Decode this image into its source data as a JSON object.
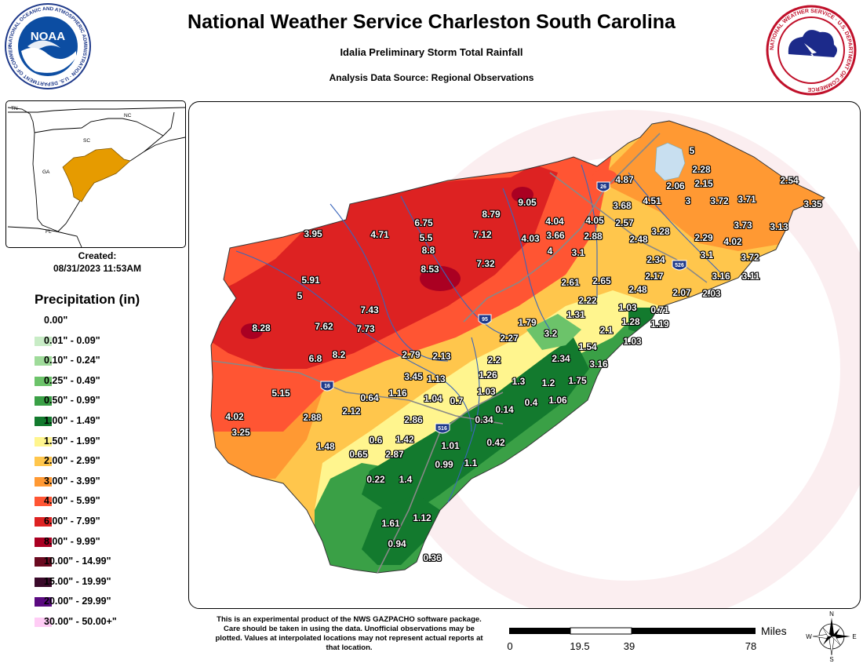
{
  "header": {
    "title": "National Weather Service Charleston South Carolina",
    "subtitle": "Idalia Preliminary Storm Total Rainfall",
    "source": "Analysis Data Source: Regional Observations"
  },
  "logos": {
    "noaa_text": "NOAA",
    "noaa_ring": "NATIONAL OCEANIC AND ATMOSPHERIC ADMINISTRATION · U.S. DEPARTMENT OF COMMERCE",
    "nws_ring": "NATIONAL WEATHER SERVICE · U.S. DEPARTMENT OF COMMERCE"
  },
  "inset": {
    "labels": [
      "TN",
      "NC",
      "SC",
      "GA",
      "FL"
    ],
    "highlight_color": "#e69b00"
  },
  "created": {
    "label": "Created:",
    "date": "08/31/2023 11:53AM"
  },
  "legend": {
    "title": "Precipitation (in)",
    "items": [
      {
        "label": "0.00\"",
        "color": "#ffffff"
      },
      {
        "label": "0.01\" - 0.09\"",
        "color": "#c8ecc6"
      },
      {
        "label": "0.10\" - 0.24\"",
        "color": "#9fdb9a"
      },
      {
        "label": "0.25\" - 0.49\"",
        "color": "#6cc36a"
      },
      {
        "label": "0.50\" - 0.99\"",
        "color": "#3aa046"
      },
      {
        "label": "1.00\" - 1.49\"",
        "color": "#137a2e"
      },
      {
        "label": "1.50\" - 1.99\"",
        "color": "#fff58e"
      },
      {
        "label": "2.00\" - 2.99\"",
        "color": "#ffc64c"
      },
      {
        "label": "3.00\" - 3.99\"",
        "color": "#ff9933"
      },
      {
        "label": "4.00\" - 5.99\"",
        "color": "#ff5533"
      },
      {
        "label": "6.00\" - 7.99\"",
        "color": "#dd2222"
      },
      {
        "label": "8.00\" - 9.99\"",
        "color": "#aa0022"
      },
      {
        "label": "10.00\" - 14.99\"",
        "color": "#6a0a20"
      },
      {
        "label": "15.00\" - 19.99\"",
        "color": "#3a0a2a"
      },
      {
        "label": "20.00\" - 29.99\"",
        "color": "#5a0a80"
      },
      {
        "label": "30.00\" - 50.00+\"",
        "color": "#ffccf5"
      }
    ]
  },
  "map": {
    "highways": [
      "26",
      "95",
      "526",
      "16",
      "516"
    ],
    "observations": [
      "5",
      "2.28",
      "4.87",
      "2.06",
      "2.15",
      "2.54",
      "3.68",
      "4.51",
      "3",
      "3.72",
      "3.71",
      "3.35",
      "9.05",
      "8.79",
      "6.75",
      "4.04",
      "4.05",
      "2.57",
      "3.73",
      "3.13",
      "3.95",
      "4.71",
      "5.5",
      "7.12",
      "4.03",
      "3.66",
      "2.88",
      "3.28",
      "2.29",
      "4.02",
      "8.8",
      "2.48",
      "4",
      "3.1",
      "3.1",
      "3.72",
      "7.32",
      "8.53",
      "2.34",
      "5.91",
      "2.17",
      "3.16",
      "3.11",
      "5",
      "2.61",
      "2.65",
      "2.07",
      "2.03",
      "2.48",
      "7.43",
      "2.22",
      "1.03",
      "0.71",
      "8.28",
      "7.62",
      "7.73",
      "1.31",
      "1.28",
      "1.19",
      "1.79",
      "2.1",
      "2.27",
      "3.2",
      "1.03",
      "1.54",
      "6.8",
      "8.2",
      "2.79",
      "2.13",
      "2.2",
      "2.34",
      "3.16",
      "3.45",
      "1.13",
      "1.26",
      "1.3",
      "1.2",
      "1.75",
      "5.15",
      "1.16",
      "0.64",
      "1.03",
      "1.04",
      "0.7",
      "0.4",
      "1.06",
      "0.14",
      "4.02",
      "2.88",
      "2.12",
      "2.86",
      "0.34",
      "3.25",
      "0.6",
      "1.42",
      "0.42",
      "1.48",
      "0.65",
      "2.87",
      "1.01",
      "0.99",
      "1.1",
      "0.22",
      "1.4",
      "1.61",
      "1.12",
      "0.94",
      "0.36"
    ]
  },
  "footer": {
    "disclaimer": "This is an experimental product of the NWS GAZPACHO software package. Care should be taken in using the data. Unofficial observations may be plotted. Values at interpolated locations may not represent actual reports at that location.",
    "scale_labels": [
      "0",
      "19.5",
      "39",
      "78"
    ],
    "scale_units": "Miles",
    "compass": {
      "n": "N",
      "s": "S",
      "e": "E",
      "w": "W"
    }
  }
}
